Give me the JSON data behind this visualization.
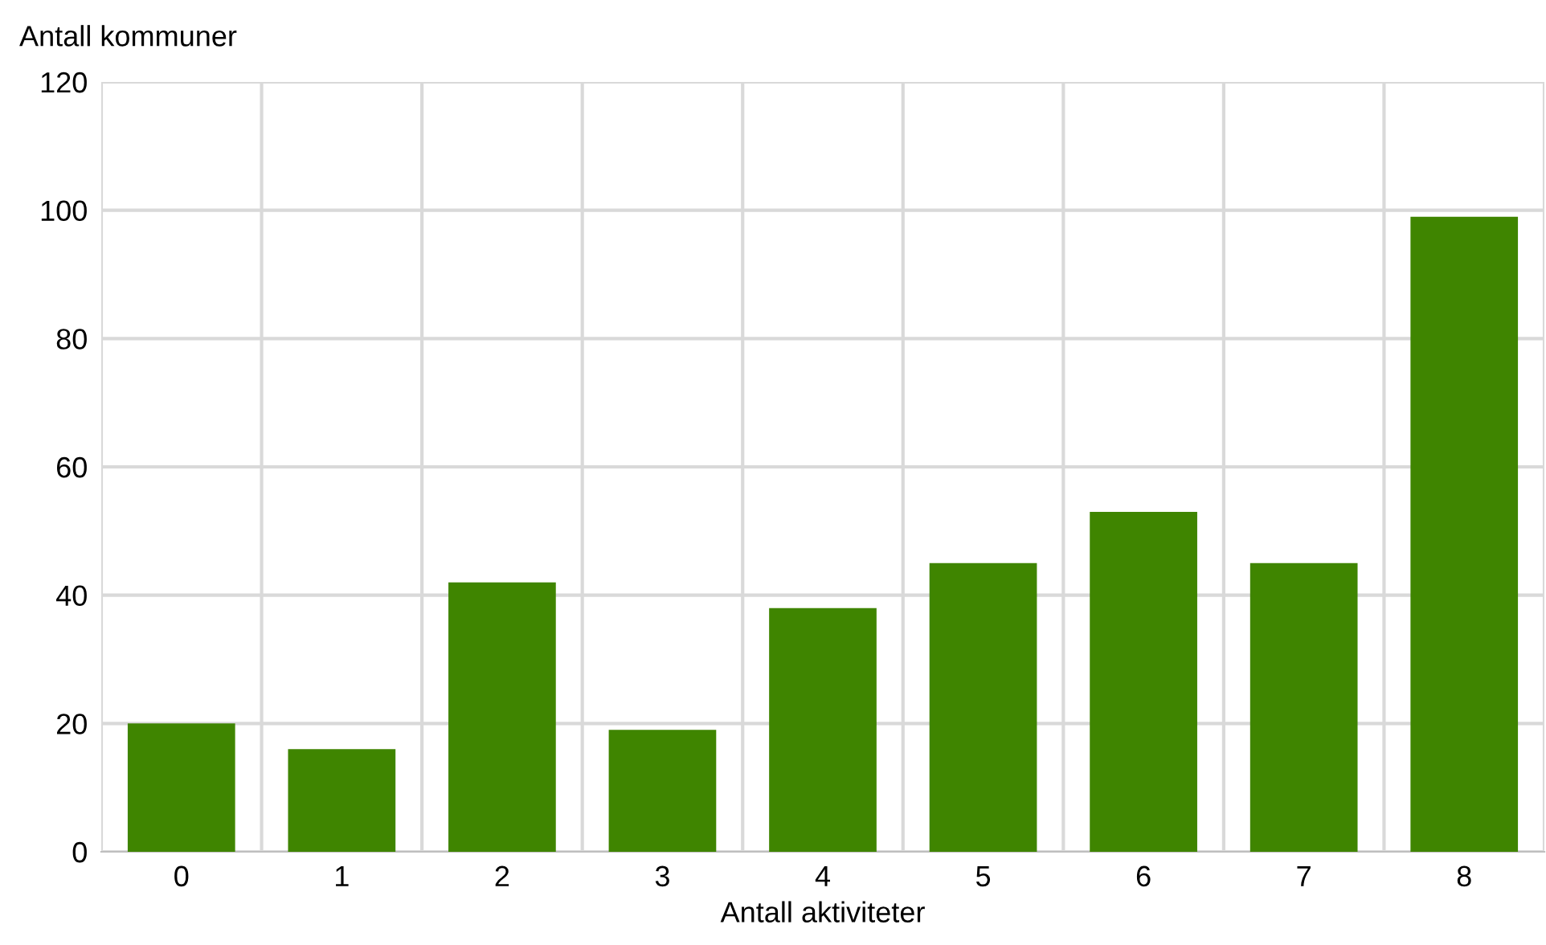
{
  "chart_data": {
    "type": "bar",
    "ylabel": "Antall kommuner",
    "xlabel": "Antall aktiviteter",
    "categories": [
      "0",
      "1",
      "2",
      "3",
      "4",
      "5",
      "6",
      "7",
      "8"
    ],
    "values": [
      20,
      16,
      42,
      19,
      38,
      45,
      53,
      45,
      99
    ],
    "color": "#3f8500",
    "ylim": [
      0,
      120
    ],
    "yticks": [
      0,
      20,
      40,
      60,
      80,
      100,
      120
    ],
    "grid": true
  }
}
